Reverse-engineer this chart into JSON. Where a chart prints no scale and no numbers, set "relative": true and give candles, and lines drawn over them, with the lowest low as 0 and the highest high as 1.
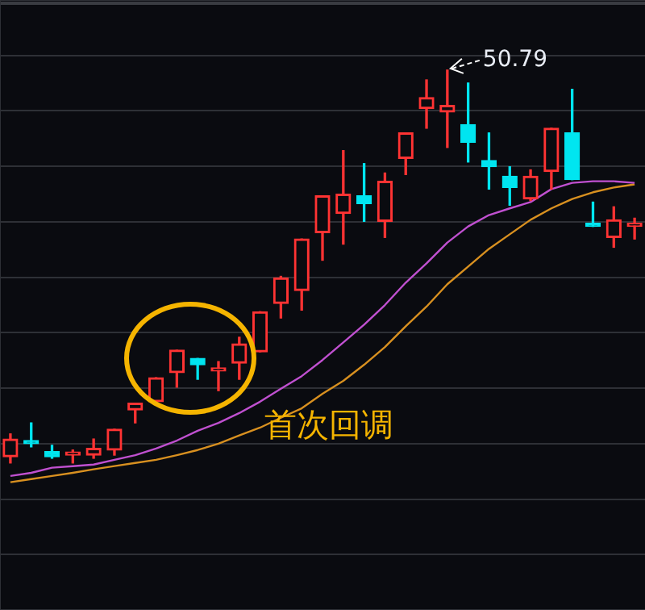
{
  "chart_data": {
    "type": "candlestick",
    "relative": true,
    "grid": true,
    "legend": false,
    "categories": [
      null,
      null,
      null,
      null,
      null,
      null,
      null,
      null,
      null,
      null,
      null,
      null,
      null,
      null,
      null,
      null,
      null,
      null,
      null,
      null,
      null,
      null,
      null,
      null,
      null,
      null,
      null,
      null,
      null,
      null,
      null
    ],
    "ohlc": [
      [
        0.016,
        0.074,
        0,
        0.061
      ],
      [
        0.053,
        0.102,
        0.041,
        0.049
      ],
      [
        0.029,
        0.045,
        0.012,
        0.016
      ],
      [
        0.02,
        0.033,
        0,
        0.025
      ],
      [
        0.02,
        0.061,
        0.012,
        0.037
      ],
      [
        0.033,
        0.086,
        0.02,
        0.086
      ],
      [
        0.135,
        0.152,
        0.102,
        0.152
      ],
      [
        0.156,
        0.217,
        0.148,
        0.217
      ],
      [
        0.23,
        0.287,
        0.193,
        0.287
      ],
      [
        0.266,
        0.266,
        0.213,
        0.25
      ],
      [
        0.234,
        0.258,
        0.184,
        0.242
      ],
      [
        0.254,
        0.32,
        0.213,
        0.303
      ],
      [
        0.283,
        0.385,
        0.283,
        0.385
      ],
      [
        0.406,
        0.475,
        0.369,
        0.471
      ],
      [
        0.439,
        0.57,
        0.389,
        0.57
      ],
      [
        0.586,
        0.68,
        0.516,
        0.68
      ],
      [
        0.635,
        0.795,
        0.557,
        0.684
      ],
      [
        0.68,
        0.762,
        0.615,
        0.66
      ],
      [
        0.615,
        0.738,
        0.574,
        0.717
      ],
      [
        0.775,
        0.84,
        0.734,
        0.84
      ],
      [
        0.902,
        0.975,
        0.852,
        0.93
      ],
      [
        0.893,
        1,
        0.803,
        0.91
      ],
      [
        0.861,
        0.967,
        0.766,
        0.816
      ],
      [
        0.77,
        0.84,
        0.697,
        0.754
      ],
      [
        0.73,
        0.754,
        0.656,
        0.701
      ],
      [
        0.672,
        0.746,
        0.668,
        0.73
      ],
      [
        0.742,
        0.852,
        0.697,
        0.852
      ],
      [
        0.84,
        0.951,
        0.721,
        0.721
      ],
      [
        0.607,
        0.664,
        0.602,
        0.602
      ],
      [
        0.574,
        0.652,
        0.549,
        0.619
      ],
      [
        0.602,
        0.623,
        0.57,
        0.607
      ]
    ],
    "colors": [
      "#ff3333",
      "#00e5f0",
      "#00e5f0",
      "#ff3333",
      "#ff3333",
      "#ff3333",
      "#ff3333",
      "#ff3333",
      "#ff3333",
      "#00e5f0",
      "#ff3333",
      "#ff3333",
      "#ff3333",
      "#ff3333",
      "#ff3333",
      "#ff3333",
      "#ff3333",
      "#00e5f0",
      "#ff3333",
      "#ff3333",
      "#ff3333",
      "#ff3333",
      "#00e5f0",
      "#00e5f0",
      "#00e5f0",
      "#ff3333",
      "#ff3333",
      "#00e5f0",
      "#00e5f0",
      "#ff3333",
      "#ff3333"
    ],
    "series": [
      {
        "type": "line",
        "color": "#c050d0",
        "values": [
          -0.033,
          -0.025,
          -0.012,
          -0.008,
          -0.004,
          0.008,
          0.02,
          0.037,
          0.057,
          0.082,
          0.102,
          0.127,
          0.156,
          0.189,
          0.221,
          0.262,
          0.307,
          0.352,
          0.402,
          0.459,
          0.508,
          0.561,
          0.602,
          0.631,
          0.648,
          0.664,
          0.697,
          0.713,
          0.717,
          0.717,
          0.713
        ]
      },
      {
        "type": "line",
        "color": "#d89020",
        "values": [
          -0.049,
          -0.041,
          -0.033,
          -0.025,
          -0.016,
          -0.008,
          0,
          0.008,
          0.02,
          0.033,
          0.049,
          0.07,
          0.09,
          0.115,
          0.139,
          0.176,
          0.209,
          0.25,
          0.295,
          0.348,
          0.398,
          0.455,
          0.5,
          0.545,
          0.582,
          0.619,
          0.648,
          0.672,
          0.689,
          0.701,
          0.709
        ]
      }
    ],
    "annotations": [
      "50.79",
      "首次回调"
    ]
  }
}
